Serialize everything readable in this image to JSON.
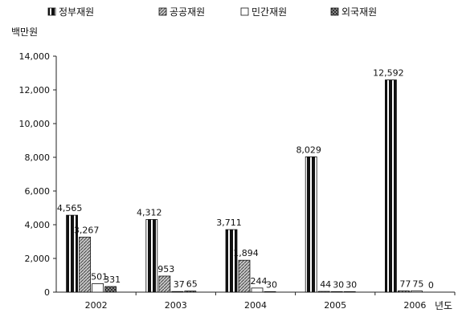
{
  "chart_data": {
    "type": "bar",
    "title": "",
    "ylabel": "백만원",
    "xlabel": "년도",
    "categories": [
      "2002",
      "2003",
      "2004",
      "2005",
      "2006"
    ],
    "ylim": [
      0,
      14000
    ],
    "yticks": [
      "0",
      "2,000",
      "4,000",
      "6,000",
      "8,000",
      "10,000",
      "12,000",
      "14,000"
    ],
    "legend_position": "top",
    "series": [
      {
        "name": "정부재원",
        "values": [
          4565,
          4312,
          3711,
          8029,
          12592
        ],
        "labels": [
          "4,565",
          "4,312",
          "3,711",
          "8,029",
          "12,592"
        ],
        "pattern": "vertical-stripes"
      },
      {
        "name": "공공재원",
        "values": [
          3267,
          953,
          1894,
          44,
          77
        ],
        "labels": [
          "3,267",
          "953",
          "1,894",
          "44",
          "77"
        ],
        "pattern": "hatched"
      },
      {
        "name": "민간재원",
        "values": [
          501,
          37,
          244,
          30,
          75
        ],
        "labels": [
          "501",
          "37",
          "244",
          "30",
          "75"
        ],
        "pattern": "white"
      },
      {
        "name": "외국재원",
        "values": [
          331,
          65,
          30,
          30,
          0
        ],
        "labels": [
          "331",
          "65",
          "30",
          "30",
          "0"
        ],
        "pattern": "dark-check"
      }
    ]
  }
}
